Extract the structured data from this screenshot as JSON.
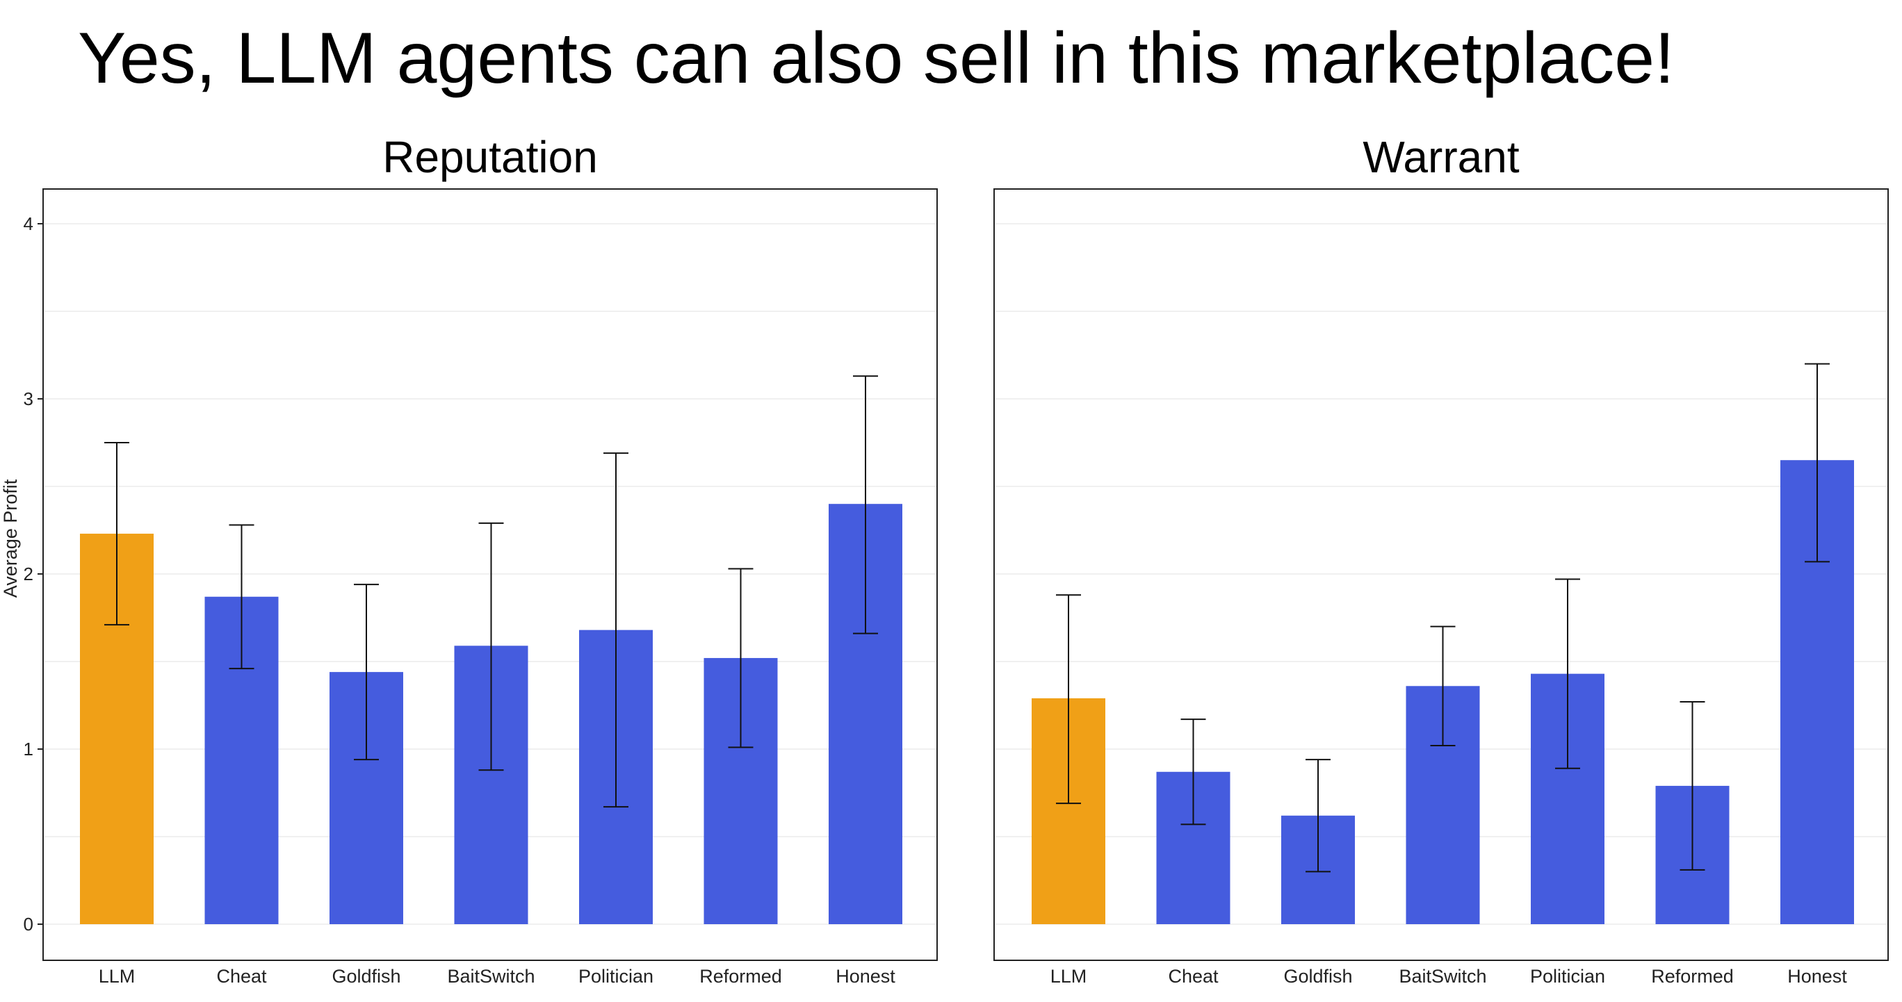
{
  "slide": {
    "headline": "Yes, LLM agents can also sell in this marketplace!"
  },
  "chart_data": [
    {
      "type": "bar",
      "title": "Reputation",
      "ylabel": "Average Profit",
      "xlabel": "",
      "categories": [
        "LLM",
        "Cheat",
        "Goldfish",
        "BaitSwitch",
        "Politician",
        "Reformed",
        "Honest"
      ],
      "values": [
        2.23,
        1.87,
        1.44,
        1.59,
        1.68,
        1.52,
        2.4
      ],
      "error_low": [
        1.71,
        1.46,
        0.94,
        0.88,
        0.67,
        1.01,
        1.66
      ],
      "error_high": [
        2.75,
        2.28,
        1.94,
        2.29,
        2.69,
        2.03,
        3.13
      ],
      "colors": [
        "#F0A017",
        "#455CDE",
        "#455CDE",
        "#455CDE",
        "#455CDE",
        "#455CDE",
        "#455CDE"
      ],
      "ylim": [
        -0.2,
        4.2
      ],
      "yticks": [
        0,
        1,
        2,
        3,
        4
      ],
      "grid": true
    },
    {
      "type": "bar",
      "title": "Warrant",
      "ylabel": "",
      "xlabel": "",
      "categories": [
        "LLM",
        "Cheat",
        "Goldfish",
        "BaitSwitch",
        "Politician",
        "Reformed",
        "Honest"
      ],
      "values": [
        1.29,
        0.87,
        0.62,
        1.36,
        1.43,
        0.79,
        2.65
      ],
      "error_low": [
        0.69,
        0.57,
        0.3,
        1.02,
        0.89,
        0.31,
        2.07
      ],
      "error_high": [
        1.88,
        1.17,
        0.94,
        1.7,
        1.97,
        1.27,
        3.2
      ],
      "colors": [
        "#F0A017",
        "#455CDE",
        "#455CDE",
        "#455CDE",
        "#455CDE",
        "#455CDE",
        "#455CDE"
      ],
      "ylim": [
        -0.2,
        4.2
      ],
      "yticks": [
        0,
        1,
        2,
        3,
        4
      ],
      "grid": true
    }
  ]
}
